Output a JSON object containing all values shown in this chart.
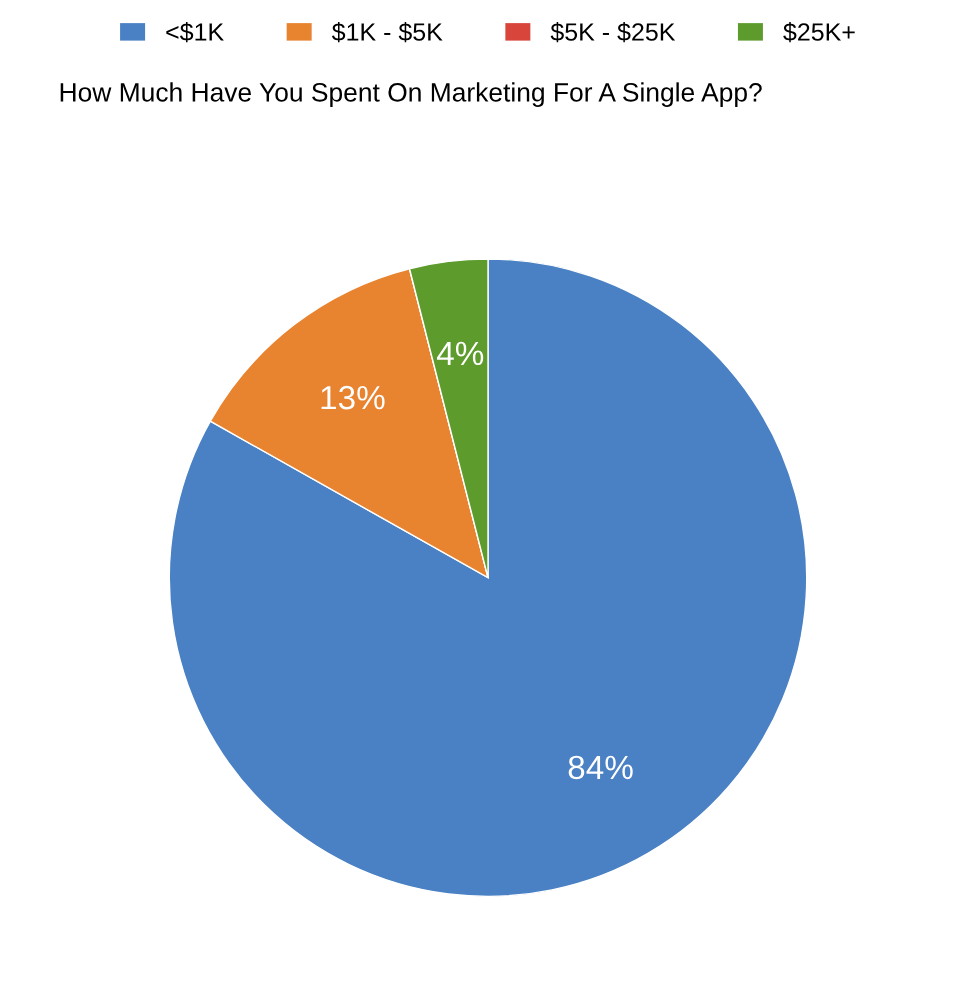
{
  "chart_data": {
    "type": "pie",
    "title": "How Much Have You Spent On Marketing For A Single App?",
    "categories": [
      "<$1K",
      "$1K - $5K",
      "$5K - $25K",
      "$25K+"
    ],
    "values": [
      84,
      13,
      0,
      4
    ],
    "colors": [
      "#4a80c4",
      "#e8832f",
      "#d8453b",
      "#5c9b2c"
    ],
    "value_labels": [
      "84%",
      "13%",
      null,
      "4%"
    ],
    "legend": "top"
  }
}
